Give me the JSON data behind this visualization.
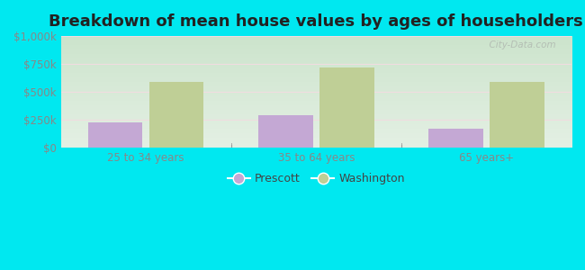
{
  "title": "Breakdown of mean house values by ages of householders",
  "categories": [
    "25 to 34 years",
    "35 to 64 years",
    "65 years+"
  ],
  "prescott_values": [
    230000,
    295000,
    175000
  ],
  "washington_values": [
    590000,
    720000,
    590000
  ],
  "prescott_color": "#c4a8d4",
  "washington_color": "#bfcf96",
  "background_outer": "#00e8f0",
  "ylim": [
    0,
    1000000
  ],
  "yticks": [
    0,
    250000,
    500000,
    750000,
    1000000
  ],
  "ytick_labels": [
    "$0",
    "$250k",
    "$500k",
    "$750k",
    "$1,000k"
  ],
  "legend_labels": [
    "Prescott",
    "Washington"
  ],
  "bar_width": 0.32,
  "title_fontsize": 13,
  "watermark": "  City-Data.com",
  "grid_color": "#e0e8d8",
  "tick_color": "#888888",
  "title_color": "#222222"
}
